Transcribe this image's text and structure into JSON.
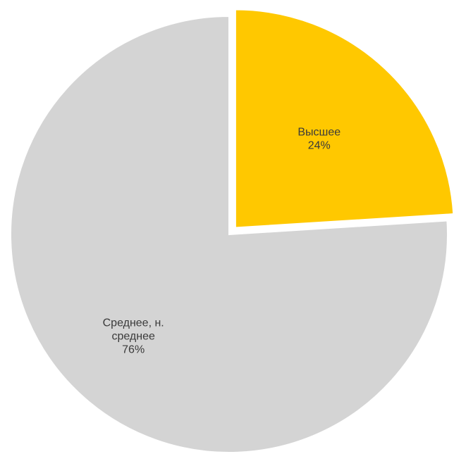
{
  "chart_data": {
    "type": "pie",
    "title": "",
    "slices": [
      {
        "label_lines": [
          "Высшее"
        ],
        "value_label": "24%",
        "value": 24,
        "color": "#FFC800",
        "exploded": true
      },
      {
        "label_lines": [
          "Среднее, н.",
          "среднее"
        ],
        "value_label": "76%",
        "value": 76,
        "color": "#D4D4D4",
        "exploded": false
      }
    ],
    "start_angle_deg": 0,
    "direction": "clockwise",
    "legend": "none"
  }
}
